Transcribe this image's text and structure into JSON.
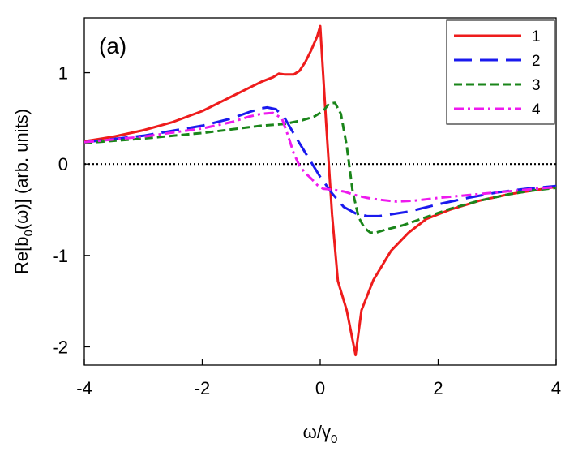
{
  "chart_data": {
    "type": "line",
    "panel_label": "(a)",
    "title": "",
    "xlabel_main": "ω/γ",
    "xlabel_sub": "0",
    "ylabel_pre": "Re[b",
    "ylabel_sub": "0",
    "ylabel_post": "(ω)] (arb. units)",
    "xlim": [
      -4,
      4
    ],
    "ylim": [
      -2.2,
      1.6
    ],
    "xticks": [
      -4,
      -2,
      0,
      2,
      4
    ],
    "xtick_labels": [
      "-4",
      "-2",
      "0",
      "2",
      "4"
    ],
    "yticks": [
      -2,
      -1,
      0,
      1
    ],
    "ytick_labels": [
      "-2",
      "-1",
      "0",
      "1"
    ],
    "zero_line": {
      "y": 0,
      "style": "dotted",
      "color": "#000000"
    },
    "legend_position": "top-right",
    "series": [
      {
        "name": "1",
        "color": "#ee1c1c",
        "dash": "solid",
        "x": [
          -4,
          -3.5,
          -3,
          -2.5,
          -2,
          -1.5,
          -1,
          -0.8,
          -0.7,
          -0.6,
          -0.45,
          -0.35,
          -0.25,
          -0.15,
          -0.05,
          0,
          0.1,
          0.2,
          0.3,
          0.45,
          0.6,
          0.7,
          0.9,
          1.2,
          1.5,
          1.8,
          2.2,
          2.7,
          3.2,
          3.6,
          4
        ],
        "y": [
          0.25,
          0.3,
          0.37,
          0.46,
          0.58,
          0.74,
          0.9,
          0.95,
          0.99,
          0.98,
          0.98,
          1.02,
          1.12,
          1.25,
          1.4,
          1.51,
          0.45,
          -0.55,
          -1.28,
          -1.6,
          -2.09,
          -1.6,
          -1.27,
          -0.95,
          -0.75,
          -0.6,
          -0.5,
          -0.4,
          -0.33,
          -0.29,
          -0.25
        ]
      },
      {
        "name": "2",
        "color": "#1a1aee",
        "dash": "longdash",
        "x": [
          -4,
          -3,
          -2,
          -1.5,
          -1.2,
          -1,
          -0.9,
          -0.75,
          -0.6,
          -0.4,
          -0.2,
          0,
          0.2,
          0.4,
          0.6,
          0.8,
          1,
          1.5,
          2,
          2.5,
          3,
          3.5,
          4
        ],
        "y": [
          0.24,
          0.31,
          0.42,
          0.5,
          0.57,
          0.61,
          0.62,
          0.6,
          0.5,
          0.28,
          0.07,
          -0.14,
          -0.32,
          -0.47,
          -0.54,
          -0.57,
          -0.57,
          -0.52,
          -0.44,
          -0.37,
          -0.31,
          -0.27,
          -0.24
        ]
      },
      {
        "name": "3",
        "color": "#1a851a",
        "dash": "shortdash",
        "x": [
          -4,
          -3,
          -2,
          -1.5,
          -1,
          -0.6,
          -0.3,
          -0.1,
          0.05,
          0.15,
          0.25,
          0.35,
          0.45,
          0.55,
          0.65,
          0.75,
          0.85,
          0.95,
          1.1,
          1.4,
          1.8,
          2.2,
          2.7,
          3.2,
          3.6,
          4
        ],
        "y": [
          0.23,
          0.28,
          0.34,
          0.38,
          0.42,
          0.44,
          0.48,
          0.52,
          0.58,
          0.66,
          0.67,
          0.55,
          0.2,
          -0.3,
          -0.58,
          -0.7,
          -0.75,
          -0.75,
          -0.72,
          -0.67,
          -0.58,
          -0.49,
          -0.4,
          -0.33,
          -0.29,
          -0.26
        ]
      },
      {
        "name": "4",
        "color": "#ee1aee",
        "dash": "dashdot",
        "x": [
          -4,
          -3,
          -2,
          -1.5,
          -1.2,
          -1,
          -0.8,
          -0.65,
          -0.55,
          -0.45,
          -0.35,
          -0.25,
          -0.15,
          -0.05,
          0.05,
          0.2,
          0.4,
          0.6,
          0.8,
          1,
          1.3,
          1.6,
          2,
          2.5,
          3,
          3.5,
          4
        ],
        "y": [
          0.24,
          0.3,
          0.39,
          0.46,
          0.52,
          0.55,
          0.56,
          0.5,
          0.32,
          0.12,
          -0.02,
          -0.1,
          -0.16,
          -0.23,
          -0.27,
          -0.28,
          -0.3,
          -0.34,
          -0.37,
          -0.39,
          -0.41,
          -0.4,
          -0.37,
          -0.34,
          -0.31,
          -0.28,
          -0.25
        ]
      }
    ]
  }
}
